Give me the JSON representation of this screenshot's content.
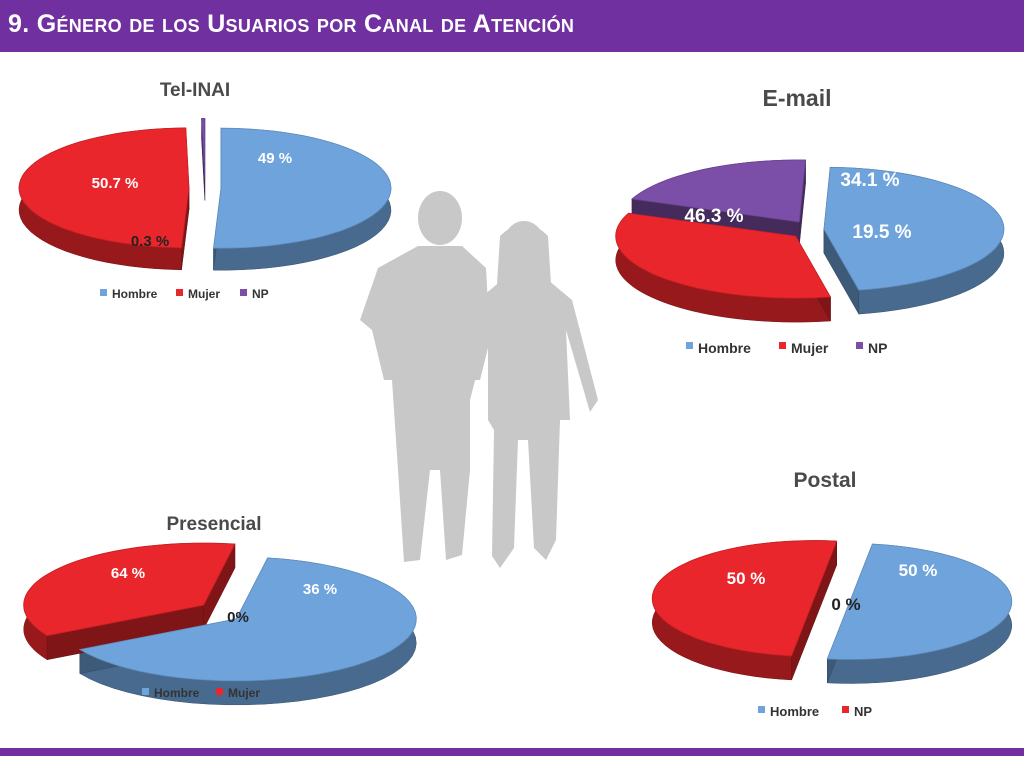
{
  "slide": {
    "title": "9. Género de los Usuarios por Canal de Atención",
    "title_bar_color": "#7030A0",
    "bottom_bar_color": "#7030A0",
    "silhouette_icon": "couple-walking-silhouette",
    "silhouette_color": "#c8c8c8"
  },
  "chart_data": [
    {
      "type": "pie",
      "title": "Tel-INAI",
      "categories": [
        "Hombre",
        "Mujer",
        "NP"
      ],
      "values": [
        50.7,
        49,
        0.3
      ],
      "labels": [
        "50.7 %",
        "49 %",
        "0.3 %"
      ],
      "legend": [
        "Hombre",
        "Mujer",
        "NP"
      ],
      "colors": [
        "#6fa3dc",
        "#e8262b",
        "#7b4ea8"
      ],
      "legend_position": "bottom"
    },
    {
      "type": "pie",
      "title": "E-mail",
      "categories": [
        "Hombre",
        "Mujer",
        "NP"
      ],
      "values": [
        46.3,
        34.1,
        19.5
      ],
      "labels": [
        "46.3 %",
        "34.1 %",
        "19.5 %"
      ],
      "legend": [
        "Hombre",
        "Mujer",
        "NP"
      ],
      "colors": [
        "#6fa3dc",
        "#e8262b",
        "#7b4ea8"
      ],
      "legend_position": "bottom"
    },
    {
      "type": "pie",
      "title": "Presencial",
      "categories": [
        "Hombre",
        "",
        "Mujer"
      ],
      "values": [
        64,
        0,
        36
      ],
      "labels": [
        "64 %",
        "0%",
        "36 %"
      ],
      "legend": [
        "Hombre",
        "Mujer"
      ],
      "colors": [
        "#6fa3dc",
        "#ffffff",
        "#e8262b"
      ],
      "legend_position": "bottom"
    },
    {
      "type": "pie",
      "title": "Postal",
      "categories": [
        "Hombre",
        "",
        "NP"
      ],
      "values": [
        50,
        0,
        50
      ],
      "labels": [
        "50 %",
        "0 %",
        "50 %"
      ],
      "legend": [
        "Hombre",
        "NP"
      ],
      "colors": [
        "#6fa3dc",
        "#ffffff",
        "#e8262b"
      ],
      "legend_position": "bottom"
    }
  ]
}
